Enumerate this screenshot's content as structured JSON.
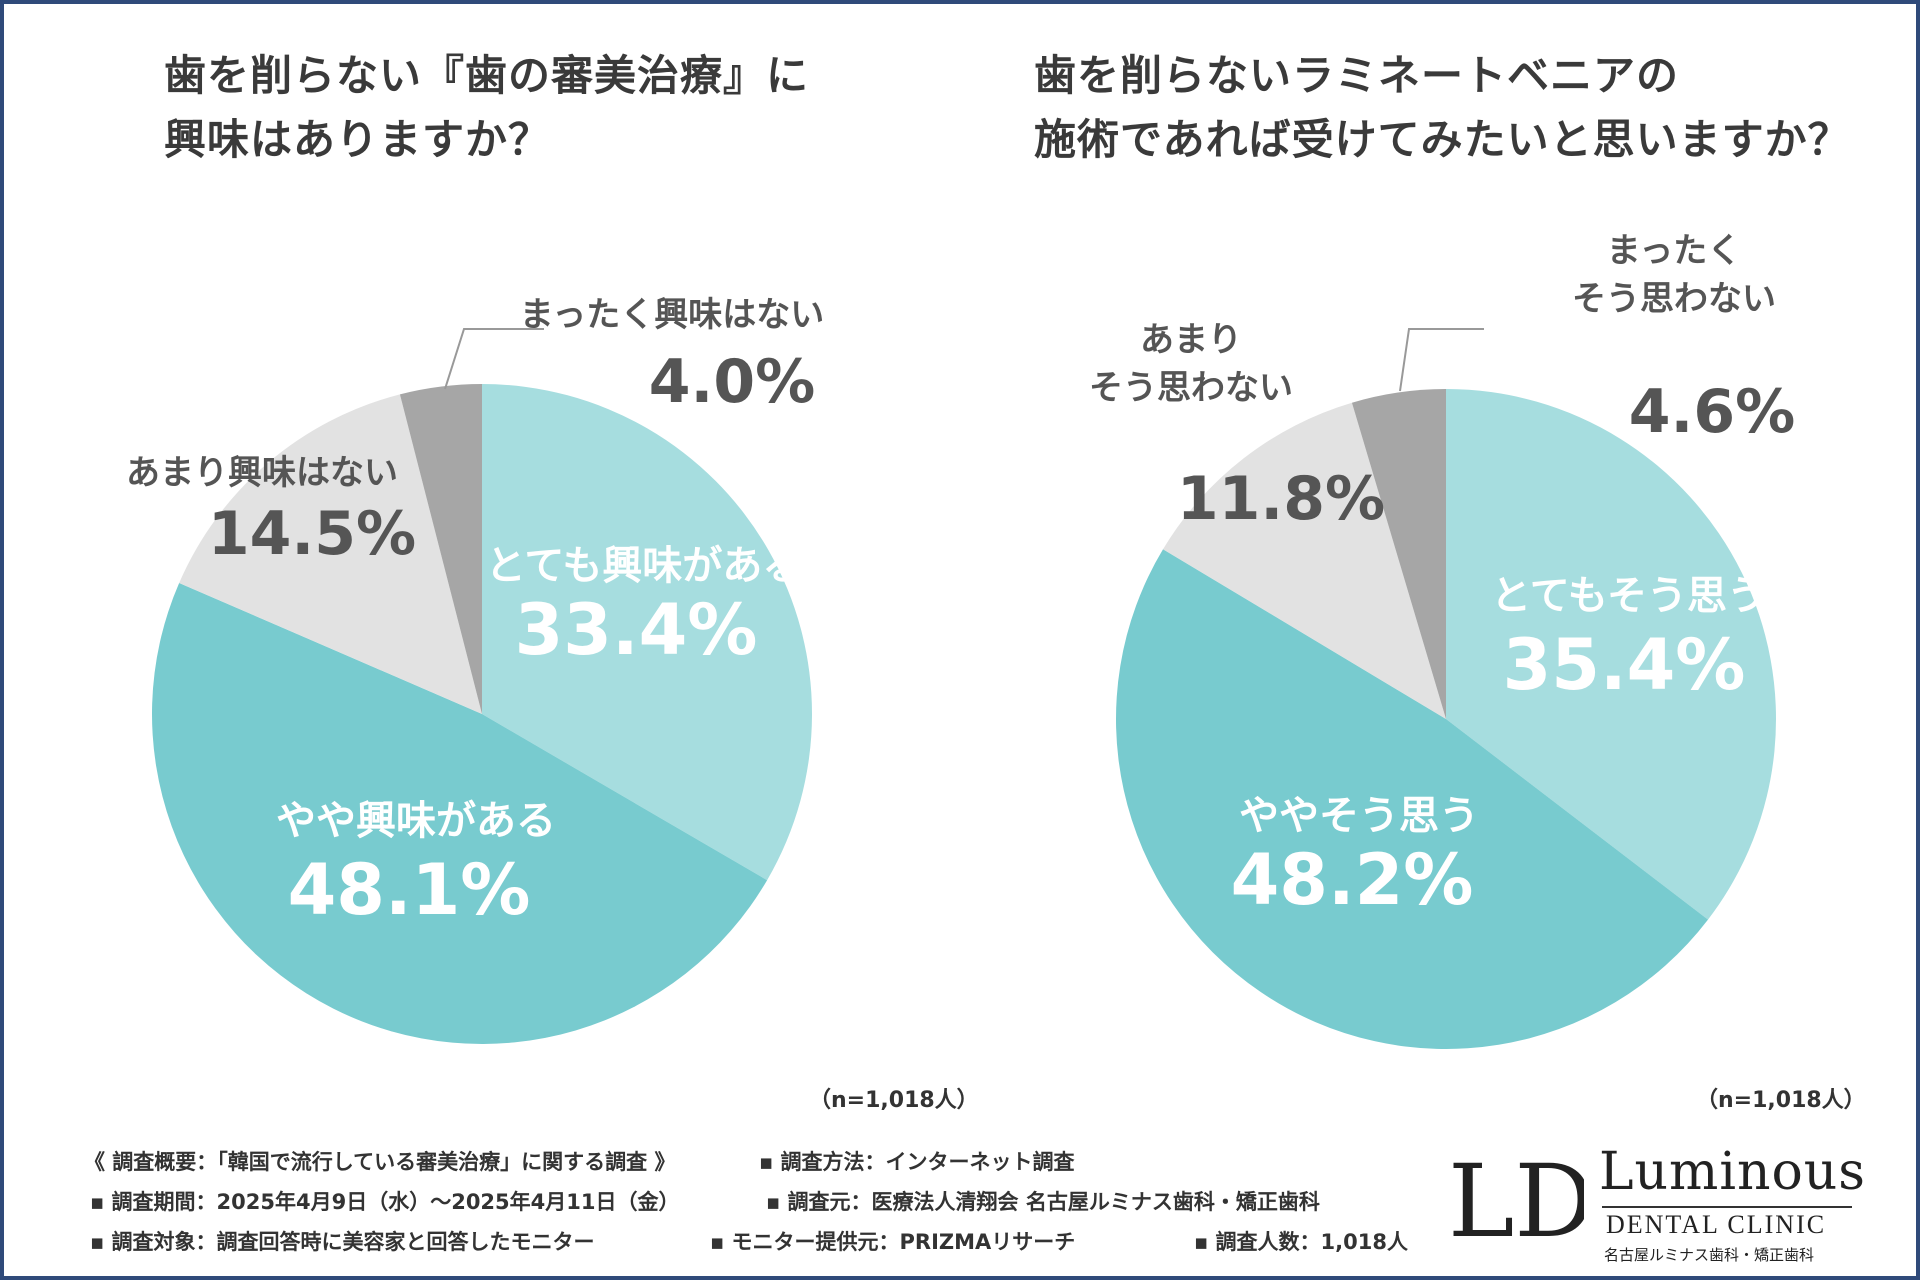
{
  "titles": {
    "left_line1": "歯を削らない『歯の審美治療』に",
    "left_line2": "興味はありますか？",
    "right_line1": "歯を削らないラミネートベニアの",
    "right_line2": "施術であれば受けてみたいと思いますか？"
  },
  "chart_data": [
    {
      "type": "pie",
      "title": "歯を削らない『歯の審美治療』に興味はありますか？",
      "n_label": "（n=1,018人）",
      "slices": [
        {
          "label": "とても興味がある",
          "lines": [
            "とても興味がある"
          ],
          "value": 33.4,
          "value_text": "33.4%",
          "color": "#a6dddf",
          "text_color": "#ffffff"
        },
        {
          "label": "やや興味がある",
          "lines": [
            "やや興味がある"
          ],
          "value": 48.1,
          "value_text": "48.1%",
          "color": "#78cbcf",
          "text_color": "#ffffff"
        },
        {
          "label": "あまり興味はない",
          "lines": [
            "あまり興味はない"
          ],
          "value": 14.5,
          "value_text": "14.5%",
          "color": "#e2e2e2",
          "text_color": "#555555"
        },
        {
          "label": "まったく興味はない",
          "lines": [
            "まったく興味はない"
          ],
          "value": 4.0,
          "value_text": "4.0%",
          "color": "#a6a6a6",
          "text_color": "#555555"
        }
      ]
    },
    {
      "type": "pie",
      "title": "歯を削らないラミネートベニアの施術であれば受けてみたいと思いますか？",
      "n_label": "（n=1,018人）",
      "slices": [
        {
          "label": "とてもそう思う",
          "lines": [
            "とてもそう思う"
          ],
          "value": 35.4,
          "value_text": "35.4%",
          "color": "#a6dddf",
          "text_color": "#ffffff"
        },
        {
          "label": "ややそう思う",
          "lines": [
            "ややそう思う"
          ],
          "value": 48.2,
          "value_text": "48.2%",
          "color": "#78cbcf",
          "text_color": "#ffffff"
        },
        {
          "label": "あまりそう思わない",
          "lines": [
            "あまり",
            "そう思わない"
          ],
          "value": 11.8,
          "value_text": "11.8%",
          "color": "#e2e2e2",
          "text_color": "#555555"
        },
        {
          "label": "まったくそう思わない",
          "lines": [
            "まったく",
            "そう思わない"
          ],
          "value": 4.6,
          "value_text": "4.6%",
          "color": "#a6a6a6",
          "text_color": "#555555"
        }
      ]
    }
  ],
  "footer": {
    "summary": "《 調査概要：「韓国で流行している審美治療」に関する調査 》",
    "method": "▪ 調査方法：インターネット調査",
    "period": "▪ 調査期間：2025年4月9日（水）～2025年4月11日（金）",
    "source": "▪ 調査元：医療法人清翔会 名古屋ルミナス歯科・矯正歯科",
    "target": "▪ 調査対象：調査回答時に美容家と回答したモニター",
    "provider": "▪ モニター提供元：PRIZMAリサーチ",
    "count": "▪ 調査人数：1,018人"
  },
  "logo": {
    "mark": "LD",
    "name": "Luminous",
    "sub": "DENTAL CLINIC",
    "jp": "名古屋ルミナス歯科・矯正歯科"
  }
}
